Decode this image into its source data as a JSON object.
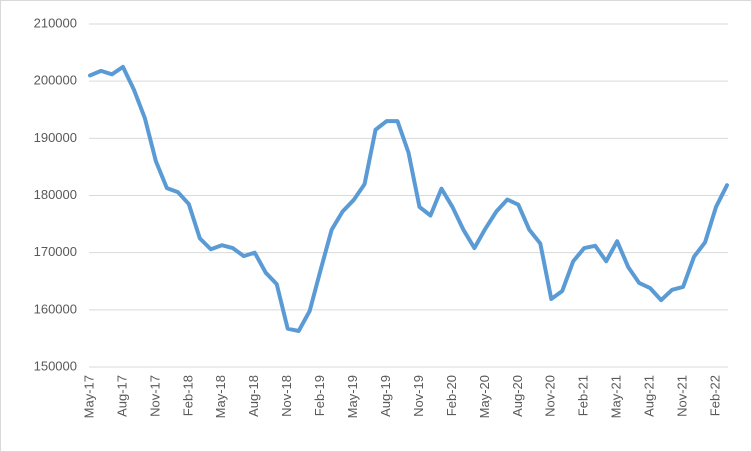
{
  "chart_data": {
    "type": "line",
    "categories": [
      "May-17",
      null,
      null,
      "Aug-17",
      null,
      null,
      "Nov-17",
      null,
      null,
      "Feb-18",
      null,
      null,
      "May-18",
      null,
      null,
      "Aug-18",
      null,
      null,
      "Nov-18",
      null,
      null,
      "Feb-19",
      null,
      null,
      "May-19",
      null,
      null,
      "Aug-19",
      null,
      null,
      "Nov-19",
      null,
      null,
      "Feb-20",
      null,
      null,
      "May-20",
      null,
      null,
      "Aug-20",
      null,
      null,
      "Nov-20",
      null,
      null,
      "Feb-21",
      null,
      null,
      "May-21",
      null,
      null,
      "Aug-21",
      null,
      null,
      "Nov-21",
      null,
      null,
      "Feb-22",
      null
    ],
    "values": [
      201000,
      201800,
      201200,
      202500,
      198500,
      193500,
      186000,
      181300,
      180600,
      178500,
      172500,
      170600,
      171300,
      170800,
      169400,
      170000,
      166500,
      164500,
      156700,
      156300,
      159800,
      167000,
      174000,
      177200,
      179200,
      182000,
      191500,
      193000,
      193000,
      187500,
      178000,
      176500,
      181200,
      178000,
      174000,
      170800,
      174200,
      177200,
      179300,
      178400,
      174000,
      171600,
      161900,
      163300,
      168500,
      170800,
      171200,
      168500,
      172000,
      167500,
      164700,
      163800,
      161700,
      163500,
      164000,
      169300,
      171800,
      178000,
      181800
    ],
    "color": "#5b9bd5",
    "ylim": [
      150000,
      210000
    ],
    "yticks": [
      150000,
      160000,
      170000,
      180000,
      190000,
      200000,
      210000
    ],
    "grid": true
  }
}
